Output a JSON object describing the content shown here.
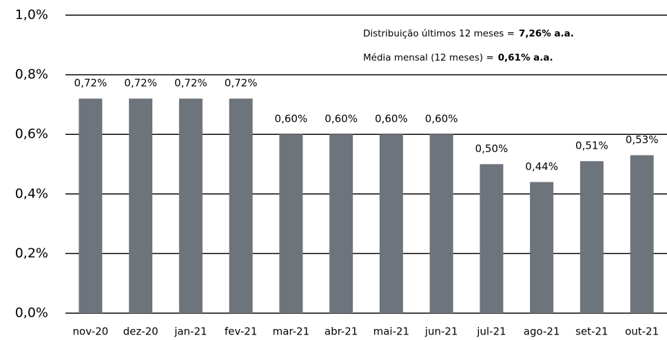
{
  "chart_data": {
    "type": "bar",
    "categories": [
      "nov-20",
      "dez-20",
      "jan-21",
      "fev-21",
      "mar-21",
      "abr-21",
      "mai-21",
      "jun-21",
      "jul-21",
      "ago-21",
      "set-21",
      "out-21"
    ],
    "values": [
      0.72,
      0.72,
      0.72,
      0.72,
      0.6,
      0.6,
      0.6,
      0.6,
      0.5,
      0.44,
      0.51,
      0.53
    ],
    "value_labels": [
      "0,72%",
      "0,72%",
      "0,72%",
      "0,72%",
      "0,60%",
      "0,60%",
      "0,60%",
      "0,60%",
      "0,50%",
      "0,44%",
      "0,51%",
      "0,53%"
    ],
    "color": "#6d747b",
    "ylim": [
      0,
      1.0
    ],
    "yticks": [
      {
        "value": 0,
        "label": "0,0%"
      },
      {
        "value": 0.2,
        "label": "0,2%"
      },
      {
        "value": 0.4,
        "label": "0,4%"
      },
      {
        "value": 0.6,
        "label": "0,6%"
      },
      {
        "value": 0.8,
        "label": "0,8%"
      },
      {
        "value": 1.0,
        "label": "1,0%"
      }
    ],
    "grid": true,
    "annotations": [
      {
        "text": "Distribuição últimos 12 meses =",
        "bold": "7,26% a.a."
      },
      {
        "text": "Média mensal (12 meses) =",
        "bold": "0,61% a.a."
      }
    ]
  }
}
